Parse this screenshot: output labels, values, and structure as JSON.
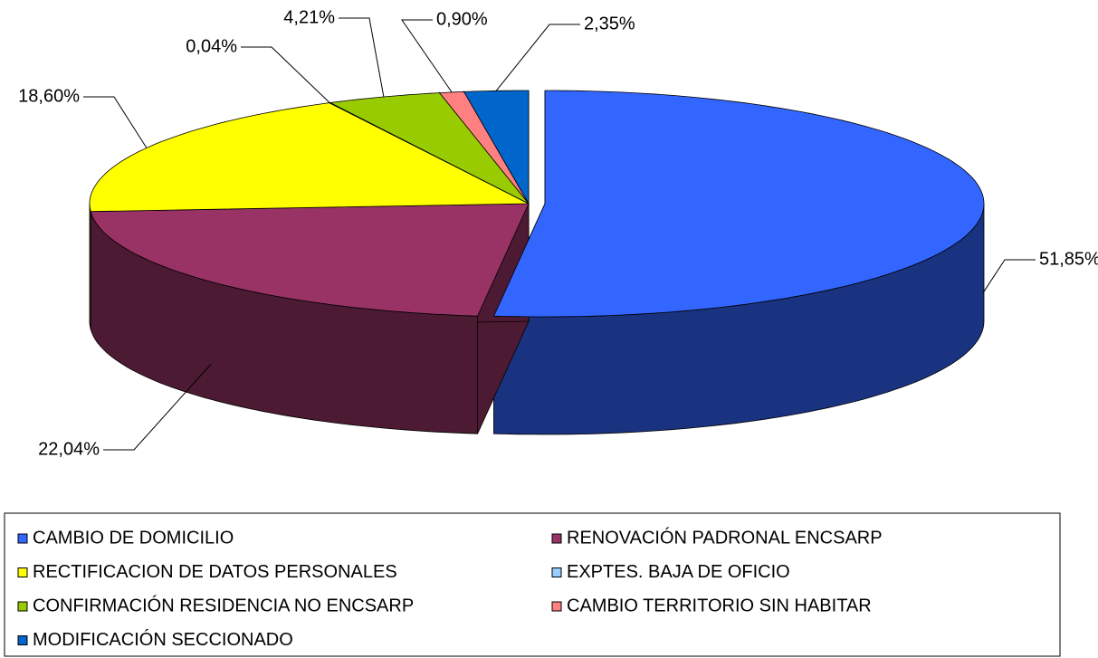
{
  "chart_data": {
    "type": "pie3d",
    "categories": [
      "CAMBIO DE DOMICILIO",
      "RENOVACIÓN PADRONAL ENCSARP",
      "RECTIFICACION DE DATOS PERSONALES",
      "EXPTES. BAJA DE OFICIO",
      "CONFIRMACIÓN RESIDENCIA NO ENCSARP",
      "CAMBIO TERRITORIO SIN HABITAR",
      "MODIFICACIÓN SECCIONADO"
    ],
    "values": [
      51.85,
      22.04,
      18.6,
      0.04,
      4.21,
      0.9,
      2.35
    ],
    "value_labels": [
      "51,85%",
      "22,04%",
      "18,60%",
      "0,04%",
      "4,21%",
      "0,90%",
      "2,35%"
    ],
    "colors": [
      "#3366ff",
      "#993366",
      "#ffff00",
      "#99ccff",
      "#99cc00",
      "#ff8080",
      "#0066cc"
    ],
    "legend": "bottom"
  }
}
